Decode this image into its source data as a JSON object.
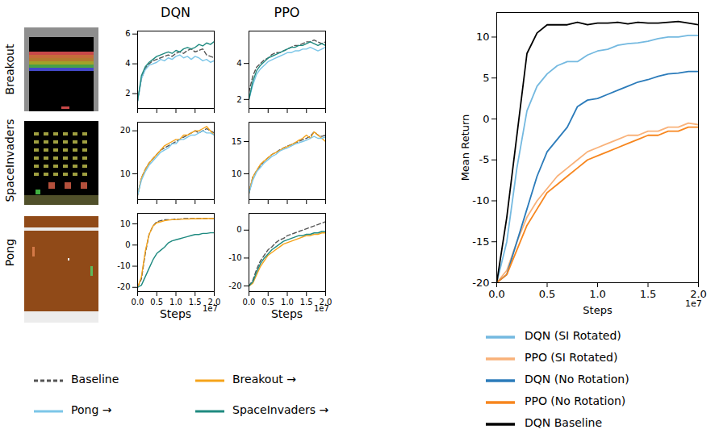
{
  "chart_data": {
    "type": "figure",
    "column_titles": [
      "DQN",
      "PPO"
    ],
    "row_titles": [
      "Breakout",
      "SpaceInvaders",
      "Pong"
    ],
    "legend": "bottom",
    "series_styles": [
      {
        "name": "Baseline",
        "color": "#555555",
        "line_style": "dashed"
      },
      {
        "name": "Breakout →",
        "color": "#f5a31a",
        "line_style": "solid"
      },
      {
        "name": "Pong →",
        "color": "#7cc6e8",
        "line_style": "solid"
      },
      {
        "name": "SpaceInvaders →",
        "color": "#1f8a80",
        "line_style": "solid"
      }
    ],
    "panels": [
      {
        "type": "line",
        "tick_labels": "y",
        "x": [
          0,
          0.1,
          0.2,
          0.3,
          0.4,
          0.5,
          0.6,
          0.7,
          0.8,
          0.9,
          1,
          1.1,
          1.2,
          1.3,
          1.4,
          1.5,
          1.6,
          1.7,
          1.8,
          1.9,
          2
        ],
        "xlim": [
          0,
          2
        ],
        "xticks": [
          {
            "value": 0,
            "label": "0.0"
          },
          0.5,
          {
            "value": 1,
            "label": "1.0"
          },
          1.5,
          {
            "value": 2,
            "label": "2.0"
          }
        ],
        "ylim": [
          1,
          6.2
        ],
        "yticks": [
          2,
          4,
          6
        ],
        "series": [
          {
            "name": "Baseline",
            "values": [
              1.5,
              3.0,
              3.7,
              4.0,
              4.2,
              4.3,
              4.4,
              4.5,
              4.6,
              4.5,
              4.7,
              4.8,
              4.7,
              4.9,
              5.0,
              4.8,
              4.9,
              5.0,
              4.6,
              4.5,
              4.4
            ]
          },
          {
            "name": "Pong →",
            "values": [
              1.5,
              3.0,
              3.6,
              3.9,
              4.0,
              4.1,
              4.3,
              4.2,
              4.4,
              4.3,
              4.5,
              4.6,
              4.4,
              4.5,
              4.3,
              4.5,
              4.4,
              4.2,
              4.3,
              4.1,
              4.2
            ]
          },
          {
            "name": "SpaceInvaders →",
            "values": [
              1.5,
              3.2,
              3.8,
              4.1,
              4.3,
              4.5,
              4.6,
              4.7,
              4.8,
              4.7,
              4.9,
              4.8,
              5.0,
              5.1,
              5.0,
              5.1,
              5.3,
              5.2,
              5.4,
              5.3,
              5.5
            ]
          }
        ]
      },
      {
        "type": "line",
        "tick_labels": "y",
        "x": [
          0,
          0.1,
          0.2,
          0.3,
          0.4,
          0.5,
          0.6,
          0.7,
          0.8,
          0.9,
          1,
          1.1,
          1.2,
          1.3,
          1.4,
          1.5,
          1.6,
          1.7,
          1.8,
          1.9,
          2
        ],
        "xlim": [
          0,
          2
        ],
        "xticks": [
          {
            "value": 0,
            "label": "0.0"
          },
          0.5,
          {
            "value": 1,
            "label": "1.0"
          },
          1.5,
          {
            "value": 2,
            "label": "2.0"
          }
        ],
        "ylim": [
          1.5,
          5.8
        ],
        "yticks": [
          2,
          4
        ],
        "series": [
          {
            "name": "Baseline",
            "values": [
              2.4,
              3.3,
              3.8,
              4.0,
              4.2,
              4.3,
              4.5,
              4.6,
              4.6,
              4.7,
              4.8,
              4.9,
              5.0,
              5.0,
              5.1,
              5.2,
              5.2,
              5.3,
              5.2,
              5.1,
              5.2
            ]
          },
          {
            "name": "Pong →",
            "values": [
              2.0,
              2.8,
              3.4,
              3.7,
              3.9,
              4.1,
              4.2,
              4.3,
              4.4,
              4.5,
              4.6,
              4.6,
              4.7,
              4.7,
              4.8,
              4.8,
              4.9,
              4.8,
              4.7,
              4.8,
              4.9
            ]
          },
          {
            "name": "SpaceInvaders →",
            "values": [
              2.0,
              3.0,
              3.6,
              3.9,
              4.1,
              4.3,
              4.4,
              4.5,
              4.6,
              4.7,
              4.8,
              4.9,
              4.9,
              5.0,
              5.0,
              5.1,
              5.2,
              5.1,
              5.0,
              5.1,
              5.0
            ]
          }
        ]
      },
      {
        "type": "line",
        "tick_labels": "y",
        "x": [
          0,
          0.1,
          0.2,
          0.3,
          0.4,
          0.5,
          0.6,
          0.7,
          0.8,
          0.9,
          1,
          1.1,
          1.2,
          1.3,
          1.4,
          1.5,
          1.6,
          1.7,
          1.8,
          1.9,
          2
        ],
        "xlim": [
          0,
          2
        ],
        "xticks": [
          {
            "value": 0,
            "label": "0.0"
          },
          0.5,
          {
            "value": 1,
            "label": "1.0"
          },
          1.5,
          {
            "value": 2,
            "label": "2.0"
          }
        ],
        "ylim": [
          4,
          22
        ],
        "yticks": [
          10,
          20
        ],
        "series": [
          {
            "name": "Baseline",
            "values": [
              5,
              9,
              11,
              12.5,
              13.5,
              14.5,
              15.5,
              16,
              16.5,
              17,
              17.5,
              18,
              18.5,
              19,
              19.5,
              20,
              19.5,
              20,
              20.5,
              20,
              19.5
            ]
          },
          {
            "name": "Breakout →",
            "values": [
              5,
              9,
              11,
              12.5,
              13.5,
              14.5,
              15.5,
              16.5,
              17,
              17.5,
              18,
              18,
              19,
              19,
              19.5,
              20,
              20,
              20.5,
              21,
              20,
              19
            ]
          },
          {
            "name": "Pong →",
            "values": [
              5,
              8.5,
              10.5,
              12,
              13,
              14,
              15,
              15.5,
              16,
              17,
              17,
              18,
              18,
              18.5,
              19,
              19,
              19.5,
              20,
              19.5,
              19.5,
              19
            ]
          }
        ]
      },
      {
        "type": "line",
        "tick_labels": "y",
        "x": [
          0,
          0.1,
          0.2,
          0.3,
          0.4,
          0.5,
          0.6,
          0.7,
          0.8,
          0.9,
          1,
          1.1,
          1.2,
          1.3,
          1.4,
          1.5,
          1.6,
          1.7,
          1.8,
          1.9,
          2
        ],
        "xlim": [
          0,
          2
        ],
        "xticks": [
          {
            "value": 0,
            "label": "0.0"
          },
          0.5,
          {
            "value": 1,
            "label": "1.0"
          },
          1.5,
          {
            "value": 2,
            "label": "2.0"
          }
        ],
        "ylim": [
          6,
          18
        ],
        "yticks": [
          10,
          15
        ],
        "series": [
          {
            "name": "Baseline",
            "values": [
              7,
              9.5,
              10.5,
              11.3,
              12,
              12.5,
              13,
              13.3,
              13.7,
              14,
              14.3,
              14.5,
              14.8,
              15,
              15.3,
              15.5,
              15.8,
              16.5,
              16,
              15.8,
              16
            ]
          },
          {
            "name": "Breakout →",
            "values": [
              7,
              9.5,
              10.5,
              11.5,
              12,
              12.5,
              13,
              13.3,
              13.6,
              14,
              14.2,
              14.5,
              14.8,
              15.2,
              15.5,
              16,
              15.5,
              16.5,
              16,
              15.5,
              15
            ]
          },
          {
            "name": "Pong →",
            "values": [
              7,
              9,
              10.3,
              11,
              11.7,
              12.2,
              12.7,
              13,
              13.5,
              13.8,
              14,
              14.3,
              14.6,
              14.8,
              15,
              15.2,
              15.5,
              15.8,
              15.5,
              15.5,
              15.7
            ]
          }
        ]
      },
      {
        "type": "line",
        "xlabel": "Steps",
        "annotations": [
          "1e7"
        ],
        "x": [
          0,
          0.1,
          0.2,
          0.3,
          0.4,
          0.5,
          0.6,
          0.7,
          0.8,
          0.9,
          1,
          1.1,
          1.2,
          1.3,
          1.4,
          1.5,
          1.6,
          1.7,
          1.8,
          1.9,
          2
        ],
        "xlim": [
          0,
          2
        ],
        "xticks": [
          {
            "value": 0,
            "label": "0.0"
          },
          0.5,
          {
            "value": 1,
            "label": "1.0"
          },
          1.5,
          {
            "value": 2,
            "label": "2.0"
          }
        ],
        "ylim": [
          -22,
          15
        ],
        "yticks": [
          -20,
          -10,
          0,
          10
        ],
        "series": [
          {
            "name": "Baseline",
            "values": [
              -20,
              -16,
              -4,
              5,
              9,
              11,
              11.5,
              12,
              12,
              12,
              12.3,
              12.3,
              12.5,
              12.5,
              12.5,
              12.5,
              12.6,
              12.6,
              12.6,
              12.6,
              12.6
            ]
          },
          {
            "name": "Breakout →",
            "values": [
              -20,
              -15,
              -3,
              5,
              9,
              10.5,
              11,
              11.5,
              11.8,
              12,
              12,
              12.2,
              12.3,
              12.3,
              12.4,
              12.4,
              12.5,
              12.5,
              12.5,
              12.6,
              12.6
            ]
          },
          {
            "name": "SpaceInvaders →",
            "values": [
              -20,
              -19,
              -15,
              -11,
              -7,
              -4,
              -2.5,
              -1,
              1,
              2,
              2.5,
              3,
              3.5,
              4,
              4.5,
              5,
              5,
              5.5,
              5.5,
              5.8,
              5.8
            ]
          }
        ]
      },
      {
        "type": "line",
        "xlabel": "Steps",
        "annotations": [
          "1e7"
        ],
        "x": [
          0,
          0.1,
          0.2,
          0.3,
          0.4,
          0.5,
          0.6,
          0.7,
          0.8,
          0.9,
          1,
          1.1,
          1.2,
          1.3,
          1.4,
          1.5,
          1.6,
          1.7,
          1.8,
          1.9,
          2
        ],
        "xlim": [
          0,
          2
        ],
        "xticks": [
          {
            "value": 0,
            "label": "0.0"
          },
          0.5,
          {
            "value": 1,
            "label": "1.0"
          },
          1.5,
          {
            "value": 2,
            "label": "2.0"
          }
        ],
        "ylim": [
          -22,
          6
        ],
        "yticks": [
          -20,
          -10,
          0
        ],
        "series": [
          {
            "name": "Baseline",
            "values": [
              -20,
              -18,
              -14,
              -11,
              -9,
              -7,
              -6,
              -4.5,
              -3.5,
              -3,
              -2,
              -1.5,
              -1,
              -0.5,
              0,
              0.5,
              1,
              1.5,
              2,
              2.5,
              3
            ]
          },
          {
            "name": "Breakout →",
            "values": [
              -20,
              -19,
              -16,
              -13,
              -11,
              -9,
              -8,
              -7,
              -6,
              -5,
              -4.5,
              -4,
              -3.5,
              -3,
              -2.5,
              -2,
              -2,
              -1.5,
              -1.5,
              -1,
              -1
            ]
          },
          {
            "name": "SpaceInvaders →",
            "values": [
              -20,
              -18.5,
              -15,
              -12,
              -10,
              -8.5,
              -7,
              -6,
              -5,
              -4,
              -3.5,
              -3,
              -2.5,
              -2,
              -2,
              -1.5,
              -1.5,
              -1,
              -1,
              -0.5,
              -0.5
            ]
          }
        ]
      }
    ],
    "right_panel": {
      "type": "line",
      "xlabel": "Steps",
      "ylabel": "Mean Return",
      "annotations": [
        "1e7"
      ],
      "legend": "bottom",
      "x": [
        0,
        0.1,
        0.2,
        0.3,
        0.4,
        0.5,
        0.6,
        0.7,
        0.8,
        0.9,
        1,
        1.1,
        1.2,
        1.3,
        1.4,
        1.5,
        1.6,
        1.7,
        1.8,
        1.9,
        2
      ],
      "xlim": [
        0,
        2
      ],
      "xticks": [
        {
          "value": 0,
          "label": "0.0"
        },
        0.5,
        {
          "value": 1,
          "label": "1.0"
        },
        1.5,
        {
          "value": 2,
          "label": "2.0"
        }
      ],
      "ylim": [
        -20,
        13
      ],
      "yticks": [
        -20,
        -15,
        -10,
        -5,
        0,
        5,
        10
      ],
      "series": [
        {
          "name": "DQN (SI Rotated)",
          "color": "#74b9e0",
          "values": [
            -20,
            -15,
            -6,
            1,
            4,
            5.5,
            6.5,
            7,
            7,
            7.8,
            8.3,
            8.5,
            9,
            9.2,
            9.3,
            9.5,
            9.8,
            10,
            10,
            10.2,
            10.2
          ]
        },
        {
          "name": "PPO (SI Rotated)",
          "color": "#f9b27a",
          "values": [
            -20,
            -18.5,
            -15,
            -12,
            -10,
            -8.5,
            -7,
            -6,
            -5,
            -4,
            -3.5,
            -3,
            -2.5,
            -2,
            -2,
            -1.5,
            -1.5,
            -1,
            -1,
            -0.5,
            -0.7
          ]
        },
        {
          "name": "DQN (No Rotation)",
          "color": "#2b7bba",
          "values": [
            -20,
            -19,
            -15,
            -11,
            -7,
            -4,
            -2.5,
            -1,
            1.5,
            2.3,
            2.5,
            3,
            3.5,
            4,
            4.5,
            4.8,
            5.2,
            5.5,
            5.6,
            5.8,
            5.8
          ]
        },
        {
          "name": "PPO (No Rotation)",
          "color": "#f7861e",
          "values": [
            -20,
            -19,
            -16,
            -13,
            -11,
            -9,
            -8,
            -7,
            -6,
            -5,
            -4.5,
            -4,
            -3.5,
            -3,
            -2.5,
            -2,
            -2,
            -1.5,
            -1.5,
            -1,
            -1
          ]
        },
        {
          "name": "DQN Baseline",
          "color": "#000000",
          "values": [
            -20,
            -12,
            -2,
            8,
            10.5,
            11.5,
            11.5,
            11.5,
            11.8,
            11.5,
            11.7,
            11.7,
            11.8,
            11.6,
            11.8,
            11.7,
            11.7,
            11.8,
            11.9,
            11.7,
            11.5
          ]
        }
      ]
    }
  }
}
